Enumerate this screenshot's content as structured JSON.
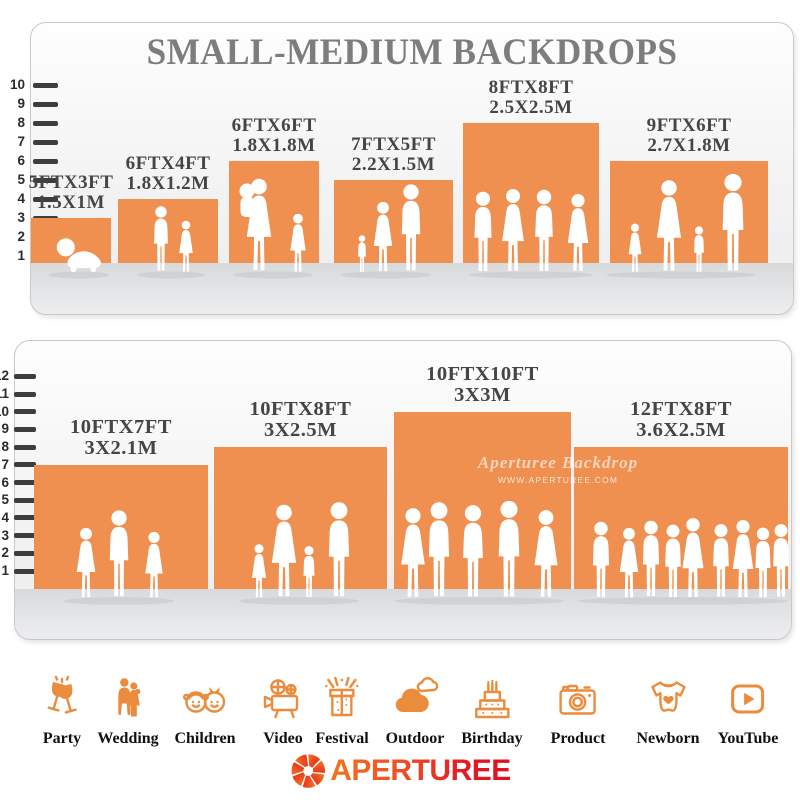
{
  "title": "SMALL-MEDIUM BACKDROPS",
  "panels": [
    {
      "ruler": [
        "1",
        "2",
        "3",
        "4",
        "5",
        "6",
        "7",
        "8",
        "9",
        "10"
      ],
      "items": [
        {
          "ft": "5FTX3FT",
          "m": "1.5X1M"
        },
        {
          "ft": "6FTX4FT",
          "m": "1.8X1.2M"
        },
        {
          "ft": "6FTX6FT",
          "m": "1.8X1.8M"
        },
        {
          "ft": "7FTX5FT",
          "m": "2.2X1.5M"
        },
        {
          "ft": "8FTX8FT",
          "m": "2.5X2.5M"
        },
        {
          "ft": "9FTX6FT",
          "m": "2.7X1.8M"
        }
      ]
    },
    {
      "ruler": [
        "1",
        "2",
        "3",
        "4",
        "5",
        "6",
        "7",
        "8",
        "9",
        "10",
        "11",
        "12"
      ],
      "items": [
        {
          "ft": "10FTX7FT",
          "m": "3X2.1M"
        },
        {
          "ft": "10FTX8FT",
          "m": "3X2.5M"
        },
        {
          "ft": "10FTX10FT",
          "m": "3X3M"
        },
        {
          "ft": "12FTX8FT",
          "m": "3.6X2.5M"
        }
      ]
    }
  ],
  "watermark": {
    "line1": "Aperturee Backdrop",
    "line2": "WWW.APERTUREE.COM"
  },
  "categories": [
    {
      "label": "Party"
    },
    {
      "label": "Wedding"
    },
    {
      "label": "Children"
    },
    {
      "label": "Video"
    },
    {
      "label": "Festival"
    },
    {
      "label": "Outdoor"
    },
    {
      "label": "Birthday"
    },
    {
      "label": "Product"
    },
    {
      "label": "Newborn"
    },
    {
      "label": "YouTube"
    }
  ],
  "logo": {
    "text": "APERTUREE"
  },
  "colors": {
    "backdrop_orange": "#EF9051",
    "icon_orange": "#EB8C3D",
    "title_gray": "#7D7D7D",
    "logo_gradient_start": "#F4731E",
    "logo_gradient_end": "#E01020"
  }
}
